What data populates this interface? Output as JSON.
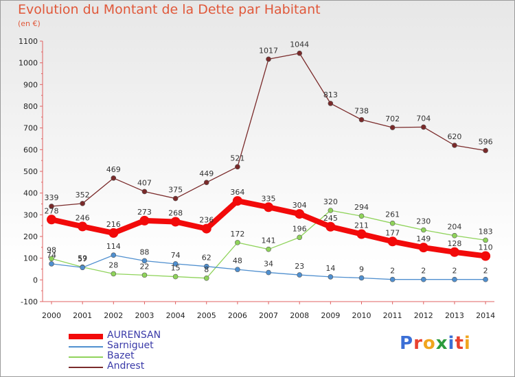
{
  "title": "Evolution du Montant de la Dette par Habitant",
  "subtitle": "(en €)",
  "logo": {
    "text": "Proxiti",
    "colors": [
      "#3b6fd6",
      "#e8412f",
      "#f0a51e",
      "#2c9b3d",
      "#3b6fd6",
      "#e8412f",
      "#f0a51e"
    ]
  },
  "chart_data": {
    "type": "line",
    "x": [
      "2000",
      "2001",
      "2002",
      "2003",
      "2004",
      "2005",
      "2006",
      "2007",
      "2008",
      "2009",
      "2010",
      "2011",
      "2012",
      "2013",
      "2014"
    ],
    "ylim": [
      -100,
      1100
    ],
    "yticks": [
      "-100",
      "0",
      "100",
      "200",
      "300",
      "400",
      "500",
      "600",
      "700",
      "800",
      "900",
      "1000",
      "1100"
    ],
    "grid": false,
    "legend_position": "bottom-left",
    "series": [
      {
        "name": "Andrest",
        "color": "#7a2a2a",
        "values": [
          339,
          352,
          469,
          407,
          375,
          449,
          521,
          1017,
          1044,
          813,
          738,
          702,
          704,
          620,
          596
        ],
        "labels": [
          "339",
          "352",
          "469",
          "407",
          "375",
          "449",
          "521",
          "1017",
          "1044",
          "813",
          "738",
          "702",
          "704",
          "620",
          "596"
        ]
      },
      {
        "name": "Bazet",
        "color": "#8fd35a",
        "values": [
          98,
          59,
          28,
          22,
          15,
          8,
          172,
          141,
          196,
          320,
          294,
          261,
          230,
          204,
          183
        ],
        "labels": [
          "98",
          "59",
          "28",
          "22",
          "15",
          "8",
          "172",
          "141",
          "196",
          "320",
          "294",
          "261",
          "230",
          "204",
          "183"
        ]
      },
      {
        "name": "Sarniguet",
        "color": "#4f8fcf",
        "values": [
          74,
          57,
          114,
          88,
          74,
          62,
          48,
          34,
          23,
          14,
          9,
          2,
          2,
          2,
          2
        ],
        "labels": [
          "74",
          "57",
          "114",
          "88",
          "74",
          "62",
          "48",
          "34",
          "23",
          "14",
          "9",
          "2",
          "2",
          "2",
          "2"
        ]
      },
      {
        "name": "AURENSAN",
        "color": "#f20a0a",
        "values": [
          278,
          246,
          216,
          273,
          268,
          236,
          364,
          335,
          304,
          245,
          211,
          177,
          149,
          128,
          110
        ],
        "labels": [
          "278",
          "246",
          "216",
          "273",
          "268",
          "236",
          "364",
          "335",
          "304",
          "245",
          "211",
          "177",
          "149",
          "128",
          "110"
        ]
      }
    ]
  },
  "legend": [
    {
      "name": "AURENSAN",
      "color": "#f20a0a",
      "thick": true
    },
    {
      "name": "Sarniguet",
      "color": "#4f8fcf",
      "thick": false
    },
    {
      "name": "Bazet",
      "color": "#8fd35a",
      "thick": false
    },
    {
      "name": "Andrest",
      "color": "#7a2a2a",
      "thick": false
    }
  ]
}
